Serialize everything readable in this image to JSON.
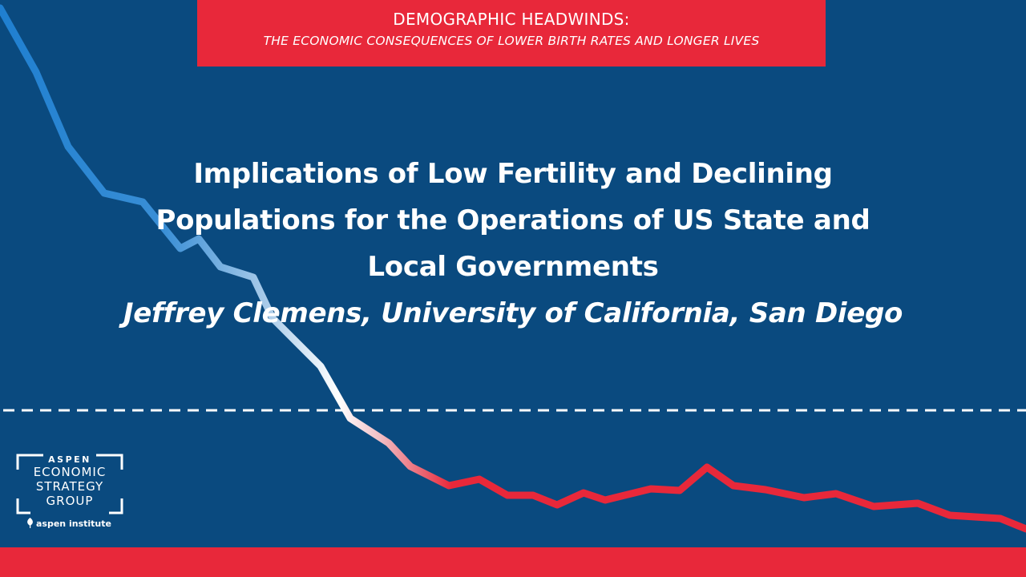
{
  "banner": {
    "title": "DEMOGRAPHIC HEADWINDS:",
    "subtitle": "THE ECONOMIC CONSEQUENCES OF LOWER BIRTH RATES AND LONGER LIVES"
  },
  "talk": {
    "title_line_1": "Implications of Low Fertility and Declining",
    "title_line_2": "Populations for the Operations of US State and",
    "title_line_3": "Local Governments",
    "author_line": "Jeffrey Clemens, University of California, San Diego"
  },
  "logo": {
    "top_word": "ASPEN",
    "line_1": "ECONOMIC",
    "line_2": "STRATEGY",
    "line_3": "GROUP",
    "institute": "aspen institute",
    "icon": "aspen-leaf-icon"
  },
  "colors": {
    "background": "#0a4a7f",
    "accent_red": "#e8283a",
    "line_blue": "#1f7fd0",
    "text": "#ffffff"
  }
}
